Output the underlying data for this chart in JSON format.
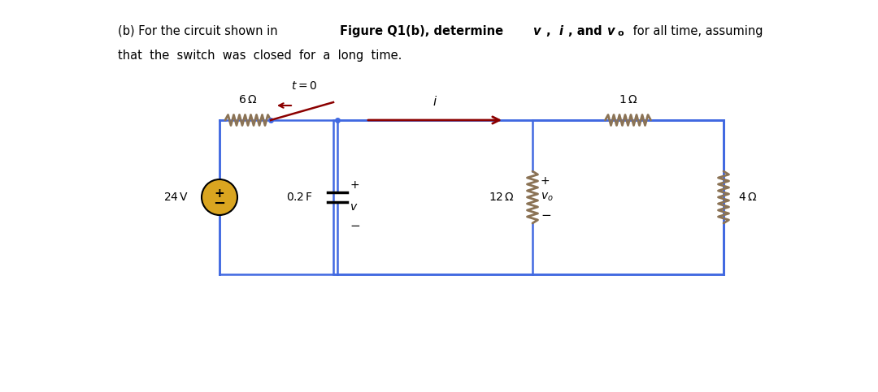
{
  "bg_color": "#ffffff",
  "title_line1": "(b) For the circuit shown in ",
  "title_bold": "Figure Q1(b), determine ",
  "title_italic_v": "v",
  "title_comma1": ", ",
  "title_italic_i": "i",
  "title_comma2": ", and ",
  "title_italic_vo": "v",
  "title_sub_o": "o",
  "title_end": " for all time, assuming",
  "title_line2": "that  the  switch  was  closed  for  a  long  time.",
  "resistor_color": "#8B7355",
  "wire_color": "#000000",
  "source_fill": "#DAA520",
  "switch_color": "#8B0000",
  "arrow_color": "#8B0000",
  "circuit_wire_color": "#4169E1",
  "resistor_wire_color": "#8B7355"
}
